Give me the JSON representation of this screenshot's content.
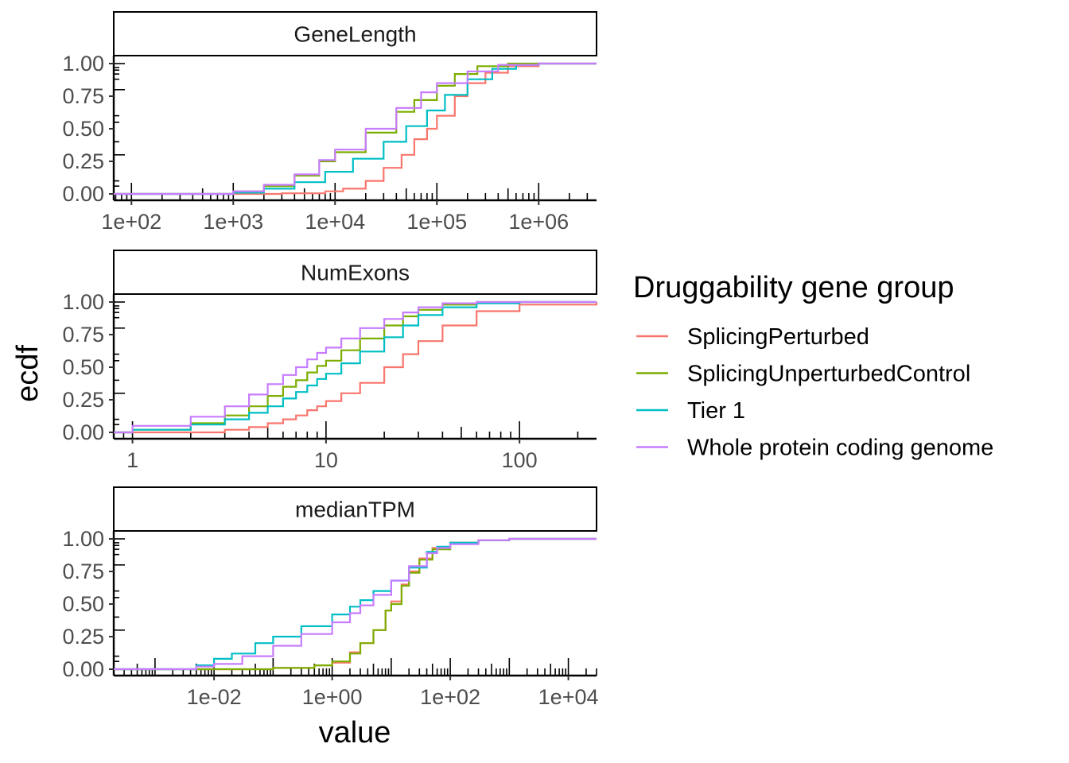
{
  "legend": {
    "title": "Druggability gene group",
    "items": [
      {
        "label": "SplicingPerturbed",
        "color": "#F8766D"
      },
      {
        "label": "SplicingUnperturbedControl",
        "color": "#7CAE00"
      },
      {
        "label": "Tier 1",
        "color": "#00BFC4"
      },
      {
        "label": "Whole protein coding genome",
        "color": "#C77CFF"
      }
    ]
  },
  "axes": {
    "xlabel": "value",
    "ylabel": "ecdf"
  },
  "chart_data": [
    {
      "type": "line",
      "step": true,
      "panel": "GeneLength",
      "xscale": "log10",
      "xlim": [
        67,
        3700000
      ],
      "ylim": [
        0,
        1
      ],
      "xticks": [
        {
          "v": 100,
          "label": "1e+02"
        },
        {
          "v": 1000,
          "label": "1e+03"
        },
        {
          "v": 10000,
          "label": "1e+04"
        },
        {
          "v": 100000,
          "label": "1e+05"
        },
        {
          "v": 1000000,
          "label": "1e+06"
        }
      ],
      "yticks": [
        {
          "v": 0,
          "label": "0.00"
        },
        {
          "v": 0.25,
          "label": "0.25"
        },
        {
          "v": 0.5,
          "label": "0.50"
        },
        {
          "v": 0.75,
          "label": "0.75"
        },
        {
          "v": 1,
          "label": "1.00"
        }
      ],
      "series": [
        {
          "name": "SplicingPerturbed",
          "color": "#F8766D",
          "points": [
            [
              67,
              0
            ],
            [
              1000,
              0
            ],
            [
              3000,
              0.005
            ],
            [
              8000,
              0.02
            ],
            [
              12000,
              0.04
            ],
            [
              20000,
              0.1
            ],
            [
              30000,
              0.2
            ],
            [
              45000,
              0.3
            ],
            [
              60000,
              0.42
            ],
            [
              80000,
              0.5
            ],
            [
              100000,
              0.6
            ],
            [
              150000,
              0.75
            ],
            [
              200000,
              0.85
            ],
            [
              300000,
              0.93
            ],
            [
              500000,
              0.98
            ],
            [
              1000000,
              1
            ],
            [
              3700000,
              1
            ]
          ]
        },
        {
          "name": "SplicingUnperturbedControl",
          "color": "#7CAE00",
          "points": [
            [
              67,
              0
            ],
            [
              400,
              0
            ],
            [
              1000,
              0.02
            ],
            [
              2000,
              0.06
            ],
            [
              4000,
              0.14
            ],
            [
              7000,
              0.25
            ],
            [
              10000,
              0.32
            ],
            [
              20000,
              0.47
            ],
            [
              40000,
              0.63
            ],
            [
              60000,
              0.72
            ],
            [
              100000,
              0.83
            ],
            [
              150000,
              0.92
            ],
            [
              250000,
              0.98
            ],
            [
              500000,
              1
            ],
            [
              3700000,
              1
            ]
          ]
        },
        {
          "name": "Tier 1",
          "color": "#00BFC4",
          "points": [
            [
              67,
              0
            ],
            [
              400,
              0
            ],
            [
              1000,
              0.01
            ],
            [
              2000,
              0.04
            ],
            [
              4000,
              0.09
            ],
            [
              8000,
              0.17
            ],
            [
              15000,
              0.27
            ],
            [
              30000,
              0.4
            ],
            [
              50000,
              0.52
            ],
            [
              80000,
              0.64
            ],
            [
              120000,
              0.76
            ],
            [
              200000,
              0.88
            ],
            [
              350000,
              0.96
            ],
            [
              600000,
              0.99
            ],
            [
              1000000,
              1
            ],
            [
              3700000,
              1
            ]
          ]
        },
        {
          "name": "Whole protein coding genome",
          "color": "#C77CFF",
          "points": [
            [
              67,
              0
            ],
            [
              300,
              0
            ],
            [
              1000,
              0.02
            ],
            [
              2000,
              0.07
            ],
            [
              4000,
              0.15
            ],
            [
              7000,
              0.26
            ],
            [
              10000,
              0.34
            ],
            [
              20000,
              0.5
            ],
            [
              40000,
              0.66
            ],
            [
              70000,
              0.78
            ],
            [
              100000,
              0.85
            ],
            [
              200000,
              0.94
            ],
            [
              400000,
              0.99
            ],
            [
              1000000,
              1
            ],
            [
              3700000,
              1
            ]
          ]
        }
      ]
    },
    {
      "type": "line",
      "step": true,
      "panel": "NumExons",
      "xscale": "log10",
      "xlim": [
        0.8,
        250
      ],
      "ylim": [
        0,
        1
      ],
      "xticks": [
        {
          "v": 1,
          "label": "1"
        },
        {
          "v": 10,
          "label": "10"
        },
        {
          "v": 100,
          "label": "100"
        }
      ],
      "yticks": [
        {
          "v": 0,
          "label": "0.00"
        },
        {
          "v": 0.25,
          "label": "0.25"
        },
        {
          "v": 0.5,
          "label": "0.50"
        },
        {
          "v": 0.75,
          "label": "0.75"
        },
        {
          "v": 1,
          "label": "1.00"
        }
      ],
      "series": [
        {
          "name": "SplicingPerturbed",
          "color": "#F8766D",
          "points": [
            [
              0.8,
              0
            ],
            [
              1,
              0
            ],
            [
              2,
              0
            ],
            [
              3,
              0.02
            ],
            [
              4,
              0.04
            ],
            [
              5,
              0.07
            ],
            [
              6,
              0.1
            ],
            [
              7,
              0.13
            ],
            [
              8,
              0.17
            ],
            [
              9,
              0.2
            ],
            [
              10,
              0.24
            ],
            [
              12,
              0.3
            ],
            [
              15,
              0.38
            ],
            [
              20,
              0.5
            ],
            [
              25,
              0.6
            ],
            [
              30,
              0.7
            ],
            [
              40,
              0.82
            ],
            [
              60,
              0.93
            ],
            [
              100,
              0.98
            ],
            [
              250,
              1
            ]
          ]
        },
        {
          "name": "SplicingUnperturbedControl",
          "color": "#7CAE00",
          "points": [
            [
              0.8,
              0
            ],
            [
              1,
              0.02
            ],
            [
              2,
              0.07
            ],
            [
              3,
              0.13
            ],
            [
              4,
              0.2
            ],
            [
              5,
              0.28
            ],
            [
              6,
              0.35
            ],
            [
              7,
              0.4
            ],
            [
              8,
              0.46
            ],
            [
              9,
              0.51
            ],
            [
              10,
              0.55
            ],
            [
              12,
              0.63
            ],
            [
              15,
              0.72
            ],
            [
              20,
              0.82
            ],
            [
              25,
              0.89
            ],
            [
              30,
              0.94
            ],
            [
              40,
              0.98
            ],
            [
              60,
              1
            ],
            [
              250,
              1
            ]
          ]
        },
        {
          "name": "Tier 1",
          "color": "#00BFC4",
          "points": [
            [
              0.8,
              0
            ],
            [
              1,
              0.02
            ],
            [
              2,
              0.06
            ],
            [
              3,
              0.1
            ],
            [
              4,
              0.15
            ],
            [
              5,
              0.2
            ],
            [
              6,
              0.26
            ],
            [
              7,
              0.31
            ],
            [
              8,
              0.36
            ],
            [
              9,
              0.41
            ],
            [
              10,
              0.45
            ],
            [
              12,
              0.53
            ],
            [
              15,
              0.62
            ],
            [
              20,
              0.73
            ],
            [
              25,
              0.82
            ],
            [
              30,
              0.9
            ],
            [
              40,
              0.96
            ],
            [
              60,
              0.99
            ],
            [
              100,
              1
            ],
            [
              250,
              1
            ]
          ]
        },
        {
          "name": "Whole protein coding genome",
          "color": "#C77CFF",
          "points": [
            [
              0.8,
              0
            ],
            [
              1,
              0.05
            ],
            [
              2,
              0.12
            ],
            [
              3,
              0.2
            ],
            [
              4,
              0.29
            ],
            [
              5,
              0.37
            ],
            [
              6,
              0.44
            ],
            [
              7,
              0.5
            ],
            [
              8,
              0.56
            ],
            [
              9,
              0.61
            ],
            [
              10,
              0.65
            ],
            [
              12,
              0.72
            ],
            [
              15,
              0.8
            ],
            [
              20,
              0.87
            ],
            [
              25,
              0.92
            ],
            [
              30,
              0.96
            ],
            [
              40,
              0.99
            ],
            [
              60,
              1
            ],
            [
              250,
              1
            ]
          ]
        }
      ]
    },
    {
      "type": "line",
      "step": true,
      "panel": "medianTPM",
      "xscale": "log10",
      "xlim": [
        0.0002,
        30000
      ],
      "ylim": [
        0,
        1
      ],
      "xticks": [
        {
          "v": 0.01,
          "label": "1e-02"
        },
        {
          "v": 1,
          "label": "1e+00"
        },
        {
          "v": 100,
          "label": "1e+02"
        },
        {
          "v": 10000,
          "label": "1e+04"
        }
      ],
      "yticks": [
        {
          "v": 0,
          "label": "0.00"
        },
        {
          "v": 0.25,
          "label": "0.25"
        },
        {
          "v": 0.5,
          "label": "0.50"
        },
        {
          "v": 0.75,
          "label": "0.75"
        },
        {
          "v": 1,
          "label": "1.00"
        }
      ],
      "series": [
        {
          "name": "SplicingPerturbed",
          "color": "#F8766D",
          "points": [
            [
              0.0002,
              0
            ],
            [
              0.01,
              0
            ],
            [
              0.1,
              0.01
            ],
            [
              0.5,
              0.03
            ],
            [
              1,
              0.05
            ],
            [
              2,
              0.13
            ],
            [
              3,
              0.2
            ],
            [
              5,
              0.3
            ],
            [
              8,
              0.45
            ],
            [
              10,
              0.52
            ],
            [
              15,
              0.65
            ],
            [
              20,
              0.75
            ],
            [
              30,
              0.85
            ],
            [
              50,
              0.93
            ],
            [
              100,
              0.97
            ],
            [
              300,
              0.99
            ],
            [
              1000,
              1
            ],
            [
              30000,
              1
            ]
          ]
        },
        {
          "name": "SplicingUnperturbedControl",
          "color": "#7CAE00",
          "points": [
            [
              0.0002,
              0
            ],
            [
              0.01,
              0
            ],
            [
              0.1,
              0.01
            ],
            [
              0.5,
              0.03
            ],
            [
              1,
              0.06
            ],
            [
              2,
              0.12
            ],
            [
              3,
              0.2
            ],
            [
              5,
              0.3
            ],
            [
              8,
              0.45
            ],
            [
              10,
              0.5
            ],
            [
              15,
              0.64
            ],
            [
              20,
              0.74
            ],
            [
              30,
              0.84
            ],
            [
              50,
              0.92
            ],
            [
              100,
              0.97
            ],
            [
              300,
              0.99
            ],
            [
              1000,
              1
            ],
            [
              30000,
              1
            ]
          ]
        },
        {
          "name": "Tier 1",
          "color": "#00BFC4",
          "points": [
            [
              0.0002,
              0
            ],
            [
              0.001,
              0
            ],
            [
              0.005,
              0.03
            ],
            [
              0.01,
              0.08
            ],
            [
              0.02,
              0.12
            ],
            [
              0.05,
              0.2
            ],
            [
              0.1,
              0.25
            ],
            [
              0.3,
              0.33
            ],
            [
              1,
              0.42
            ],
            [
              2,
              0.48
            ],
            [
              3,
              0.53
            ],
            [
              5,
              0.6
            ],
            [
              10,
              0.68
            ],
            [
              20,
              0.78
            ],
            [
              40,
              0.9
            ],
            [
              60,
              0.94
            ],
            [
              100,
              0.97
            ],
            [
              300,
              0.99
            ],
            [
              1000,
              1
            ],
            [
              30000,
              1
            ]
          ]
        },
        {
          "name": "Whole protein coding genome",
          "color": "#C77CFF",
          "points": [
            [
              0.0002,
              0
            ],
            [
              0.001,
              0
            ],
            [
              0.005,
              0.02
            ],
            [
              0.01,
              0.04
            ],
            [
              0.03,
              0.1
            ],
            [
              0.1,
              0.18
            ],
            [
              0.3,
              0.27
            ],
            [
              1,
              0.36
            ],
            [
              2,
              0.43
            ],
            [
              3,
              0.49
            ],
            [
              5,
              0.57
            ],
            [
              10,
              0.68
            ],
            [
              20,
              0.79
            ],
            [
              40,
              0.89
            ],
            [
              60,
              0.93
            ],
            [
              100,
              0.96
            ],
            [
              300,
              0.99
            ],
            [
              1000,
              1
            ],
            [
              30000,
              1
            ]
          ]
        }
      ]
    }
  ]
}
